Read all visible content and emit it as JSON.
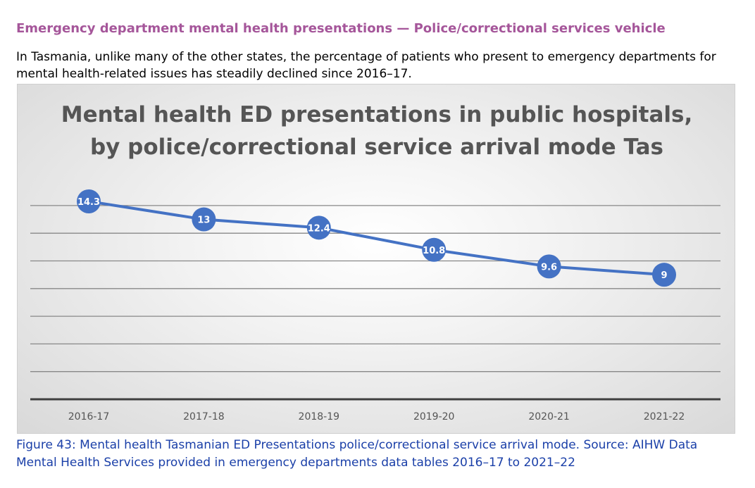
{
  "heading": "Emergency department mental health presentations — Police/correctional services vehicle",
  "intro": "In Tasmania, unlike many of the other states, the percentage of patients who present to emergency departments for mental health-related issues has steadily declined since 2016–17.",
  "caption": "Figure 43: Mental health Tasmanian ED Presentations police/correctional service arrival mode. Source: AIHW Data Mental Health Services provided in emergency departments data tables 2016–17 to 2021–22",
  "colors": {
    "heading": "#a5569a",
    "caption": "#1a3fa8",
    "series": "#4472c4"
  },
  "chart_data": {
    "type": "line",
    "title_lines": [
      "Mental health ED presentations in public hospitals,",
      "by police/correctional service arrival mode Tas"
    ],
    "categories": [
      "2016-17",
      "2017-18",
      "2018-19",
      "2019-20",
      "2020-21",
      "2021-22"
    ],
    "series": [
      {
        "values": [
          14.3,
          13,
          12.4,
          10.8,
          9.6,
          9
        ],
        "labels": [
          "14.3",
          "13",
          "12.4",
          "10.8",
          "9.6",
          "9"
        ]
      }
    ],
    "ylim": [
      0,
      14
    ],
    "y_gridline_step": 2,
    "grid": true,
    "data_labels": true,
    "legend": "none"
  }
}
